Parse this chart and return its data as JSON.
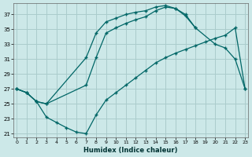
{
  "xlabel": "Humidex (Indice chaleur)",
  "bg_color": "#cce8e8",
  "grid_color": "#aacccc",
  "line_color": "#006666",
  "xlim": [
    -0.3,
    23.3
  ],
  "ylim": [
    20.5,
    38.5
  ],
  "yticks": [
    21,
    23,
    25,
    27,
    29,
    31,
    33,
    35,
    37
  ],
  "xticks": [
    0,
    1,
    2,
    3,
    4,
    5,
    6,
    7,
    8,
    9,
    10,
    11,
    12,
    13,
    14,
    15,
    16,
    17,
    18,
    19,
    20,
    21,
    22,
    23
  ],
  "line1_x": [
    0,
    1,
    2,
    3,
    7,
    8,
    9,
    10,
    11,
    12,
    13,
    14,
    15,
    16,
    17,
    18,
    20,
    21,
    22,
    23
  ],
  "line1_y": [
    27.0,
    26.5,
    25.3,
    25.0,
    27.5,
    31.2,
    34.5,
    35.2,
    35.8,
    36.3,
    36.7,
    37.5,
    38.0,
    37.8,
    36.8,
    35.2,
    33.0,
    32.5,
    31.0,
    27.0
  ],
  "line2_x": [
    0,
    1,
    2,
    3,
    7,
    8,
    9,
    10,
    11,
    12,
    13,
    14,
    15,
    16,
    17,
    18
  ],
  "line2_y": [
    27.0,
    26.5,
    25.3,
    25.0,
    31.2,
    34.5,
    36.0,
    36.5,
    37.0,
    37.3,
    37.5,
    38.0,
    38.2,
    37.8,
    37.0,
    35.2
  ],
  "line3_x": [
    0,
    1,
    2,
    3,
    4,
    5,
    6,
    7,
    8,
    9,
    10,
    11,
    12,
    13,
    14,
    15,
    16,
    17,
    18,
    19,
    20,
    21,
    22,
    23
  ],
  "line3_y": [
    27.0,
    26.5,
    25.3,
    23.2,
    22.5,
    21.8,
    21.2,
    21.0,
    23.5,
    25.5,
    26.5,
    27.5,
    28.5,
    29.5,
    30.5,
    31.2,
    31.8,
    32.3,
    32.8,
    33.3,
    33.8,
    34.2,
    35.2,
    27.0
  ]
}
